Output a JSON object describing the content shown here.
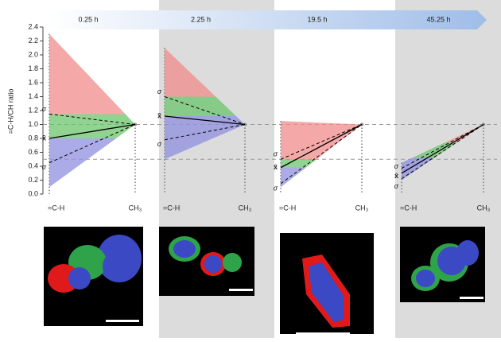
{
  "chart_data": {
    "type": "slope",
    "ylabel": "=C-H/CH ratio",
    "ylim": [
      0,
      2.4
    ],
    "yticks": [
      {
        "value": 0,
        "label": "0.0"
      },
      0.2,
      0.4,
      0.6,
      0.8,
      {
        "value": 1,
        "label": "1.0"
      },
      1.2,
      1.4,
      1.6,
      1.8,
      {
        "value": 2,
        "label": "2.0"
      },
      2.2,
      2.4
    ],
    "ref_lines": [
      1,
      0.5
    ],
    "categories": [
      "=C-H",
      "CH₃"
    ],
    "end_value": 1,
    "mean_label": "x̄",
    "sigma_label": "σ",
    "colors": {
      "high": "#f28b8b",
      "mid": "#6cc46c",
      "low": "#8f8fe0"
    },
    "panels": [
      {
        "title": "0.25 h",
        "max": 2.3,
        "min": 0.1,
        "mean": 0.8,
        "sigma_upper": 1.15,
        "sigma_lower": 0.45
      },
      {
        "title": "2.25 h",
        "max": 2.1,
        "min": 0.5,
        "mean": 1.12,
        "sigma_upper": 1.4,
        "sigma_lower": 0.78
      },
      {
        "title": "19.5 h",
        "max": 1.05,
        "min": 0.1,
        "mean": 0.38,
        "sigma_upper": 0.5,
        "sigma_lower": 0.15
      },
      {
        "title": "45.25 h",
        "max": 0.45,
        "min": 0.2,
        "mean": 0.3,
        "sigma_upper": 0.37,
        "sigma_lower": 0.22
      }
    ]
  }
}
